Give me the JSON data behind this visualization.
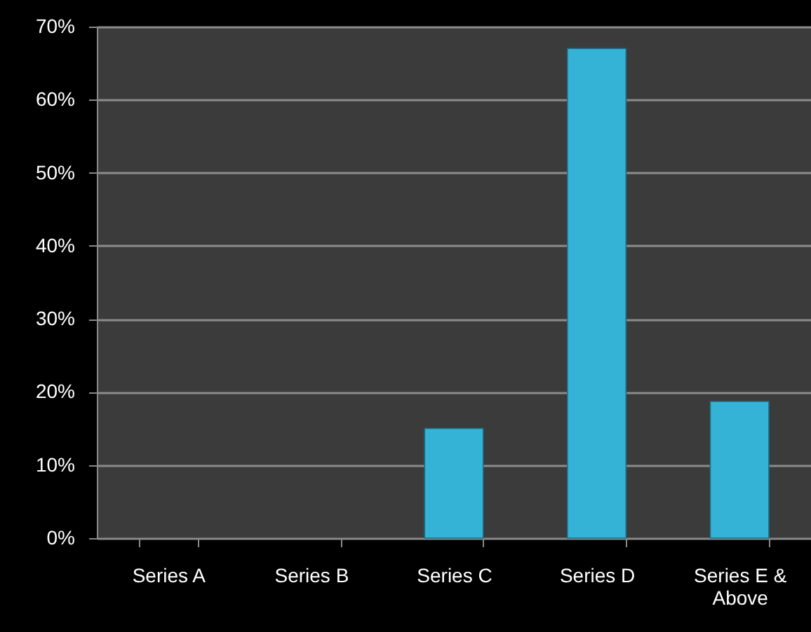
{
  "chart_data": {
    "type": "bar",
    "categories": [
      "Series A",
      "Series B",
      "Series C",
      "Series D",
      "Series E & Above"
    ],
    "values": [
      null,
      null,
      15,
      67,
      18.7
    ],
    "color": "#35b3d6",
    "ylim": [
      0,
      70
    ],
    "yticks": [
      {
        "value": 0,
        "label": "0%"
      },
      {
        "value": 10,
        "label": "10%"
      },
      {
        "value": 20,
        "label": "20%"
      },
      {
        "value": 30,
        "label": "30%"
      },
      {
        "value": 40,
        "label": "40%"
      },
      {
        "value": 50,
        "label": "50%"
      },
      {
        "value": 60,
        "label": "60%"
      },
      {
        "value": 70,
        "label": "70%"
      }
    ],
    "grid": "y"
  }
}
